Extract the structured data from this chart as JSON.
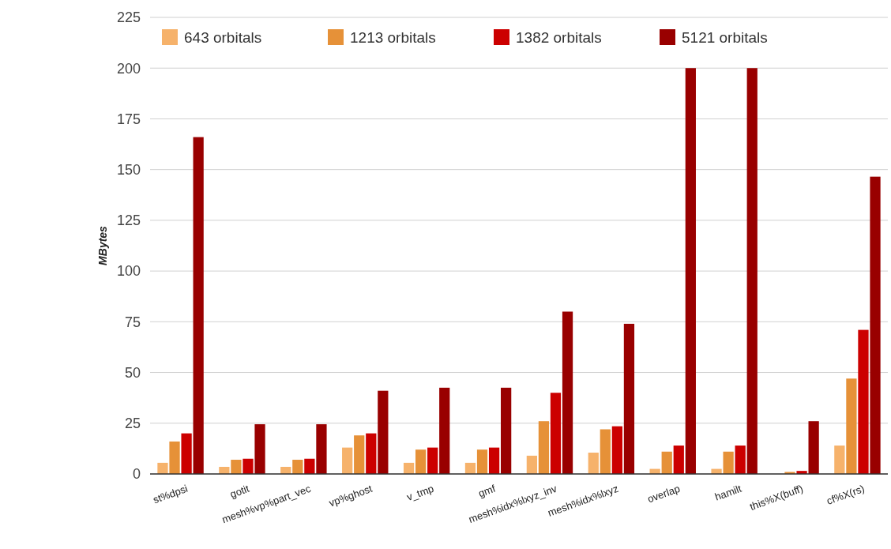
{
  "chart_data": {
    "type": "bar",
    "ylabel": "MBytes",
    "categories": [
      "st%dpsi",
      "gotit",
      "mesh%vp%part_vec",
      "vp%ghost",
      "v_tmp",
      "gmf",
      "mesh%idx%lxyz_inv",
      "mesh%idx%lxyz",
      "overlap",
      "hamilt",
      "this%X(buff)",
      "cf%X(rs)"
    ],
    "series": [
      {
        "name": "643 orbitals",
        "color": "#f6b26b",
        "values": [
          5.5,
          3.5,
          3.5,
          13,
          5.5,
          5.5,
          9,
          10.5,
          2.5,
          2.5,
          null,
          14
        ]
      },
      {
        "name": "1213 orbitals",
        "color": "#e69138",
        "values": [
          16,
          7,
          7,
          19,
          12,
          12,
          26,
          22,
          11,
          11,
          1,
          47
        ]
      },
      {
        "name": "1382 orbitals",
        "color": "#cc0000",
        "values": [
          20,
          7.5,
          7.5,
          20,
          13,
          13,
          40,
          23.5,
          14,
          14,
          1.5,
          71
        ]
      },
      {
        "name": "5121 orbitals",
        "color": "#990000",
        "values": [
          166,
          24.5,
          24.5,
          41,
          42.5,
          42.5,
          80,
          74,
          200,
          200,
          26,
          146.5
        ]
      }
    ],
    "ylim": [
      0,
      225
    ],
    "yticks": [
      0,
      25,
      50,
      75,
      100,
      125,
      150,
      175,
      200,
      225
    ],
    "grid": true,
    "legend": "top"
  }
}
